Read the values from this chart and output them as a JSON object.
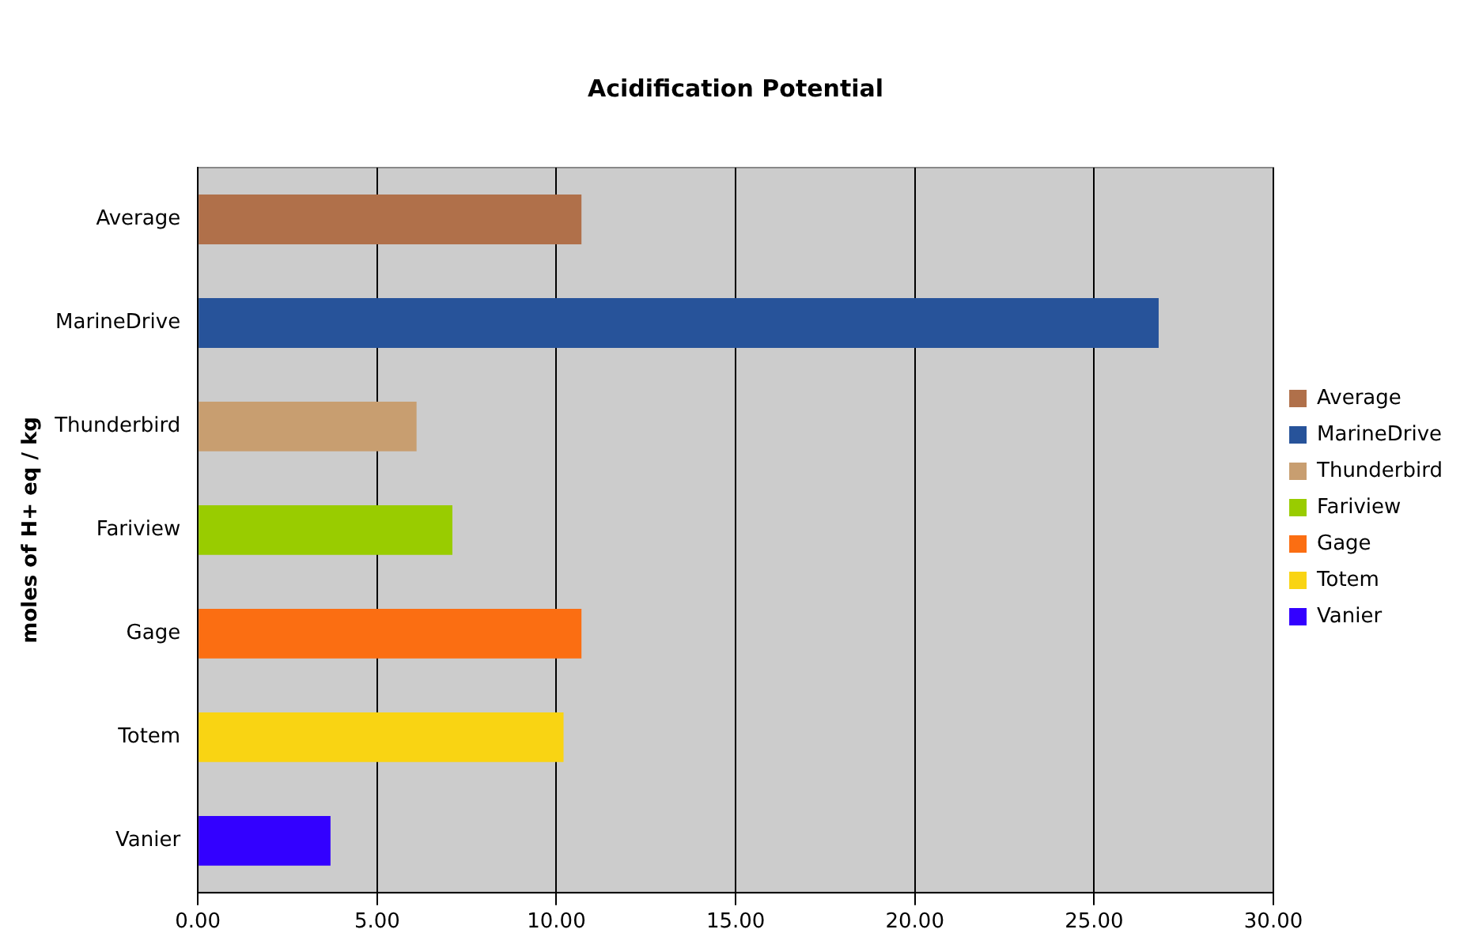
{
  "chart_data": {
    "type": "bar",
    "orientation": "horizontal",
    "title": "Acidification Potential",
    "ylabel": "moles of H+ eq / kg",
    "categories": [
      "Average",
      "MarineDrive",
      "Thunderbird",
      "Fariview",
      "Gage",
      "Totem",
      "Vanier"
    ],
    "series": [
      {
        "name": "Average",
        "color": "#b0704a",
        "values": [
          10.7,
          null,
          null,
          null,
          null,
          null,
          null
        ]
      },
      {
        "name": "MarineDrive",
        "color": "#27539a",
        "values": [
          null,
          26.8,
          null,
          null,
          null,
          null,
          null
        ]
      },
      {
        "name": "Thunderbird",
        "color": "#c89e70",
        "values": [
          null,
          null,
          6.1,
          null,
          null,
          null,
          null
        ]
      },
      {
        "name": "Fariview",
        "color": "#99cc00",
        "values": [
          null,
          null,
          null,
          7.1,
          null,
          null,
          null
        ]
      },
      {
        "name": "Gage",
        "color": "#fb6e12",
        "values": [
          null,
          null,
          null,
          null,
          10.7,
          null,
          null
        ]
      },
      {
        "name": "Totem",
        "color": "#f9d413",
        "values": [
          null,
          null,
          null,
          null,
          null,
          10.2,
          null
        ]
      },
      {
        "name": "Vanier",
        "color": "#3300ff",
        "values": [
          null,
          null,
          null,
          null,
          null,
          null,
          3.7
        ]
      }
    ],
    "xlim": [
      0,
      30
    ],
    "xticks": [
      {
        "value": 0,
        "label": "0.00"
      },
      {
        "value": 5,
        "label": "5.00"
      },
      {
        "value": 10,
        "label": "10.00"
      },
      {
        "value": 15,
        "label": "15.00"
      },
      {
        "value": 20,
        "label": "20.00"
      },
      {
        "value": 25,
        "label": "25.00"
      },
      {
        "value": 30,
        "label": "30.00"
      }
    ],
    "grid": "x",
    "legend": "right"
  }
}
